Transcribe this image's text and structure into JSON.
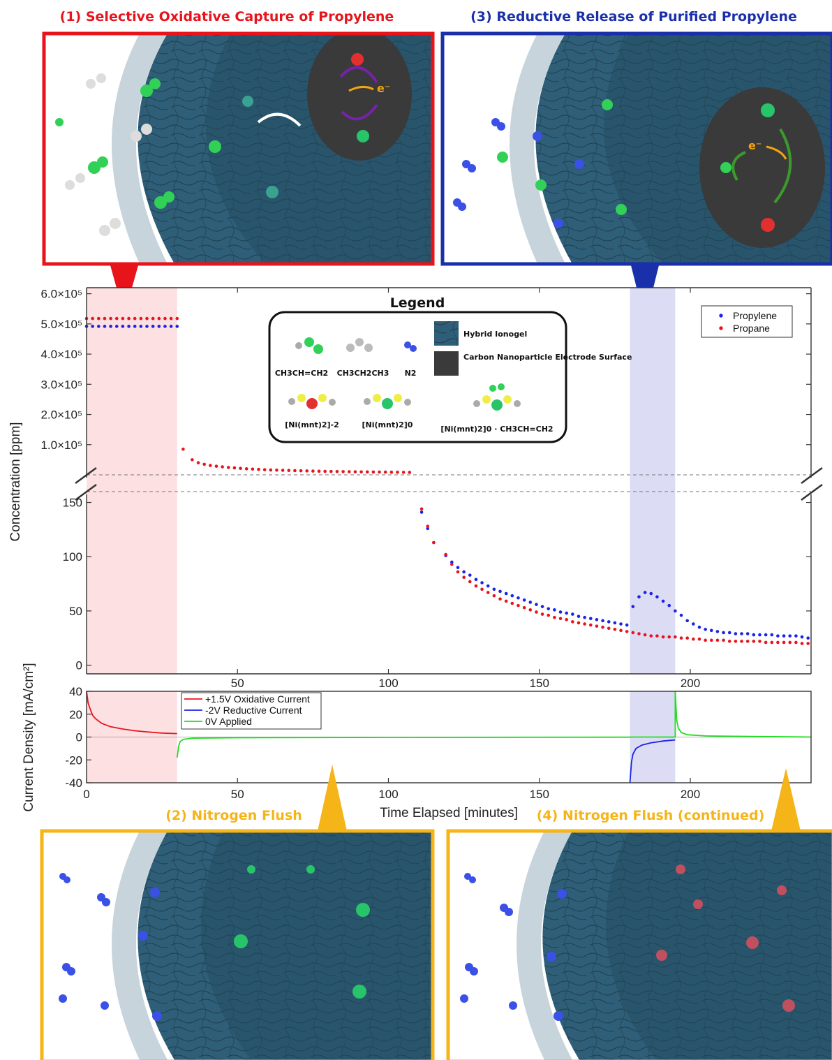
{
  "panels": {
    "p1_title": "(1) Selective Oxidative Capture of Propylene",
    "p2_title": "(2) Nitrogen Flush",
    "p3_title": "(3) Reductive Release of Purified Propylene",
    "p4_title": "(4) Nitrogen Flush (continued)",
    "electron_label": "e⁻",
    "colors": {
      "p1": "#e8141c",
      "p2": "#f5b417",
      "p3": "#1a2faa",
      "p4": "#f5b417"
    }
  },
  "legend_box": {
    "title": "Legend",
    "items": [
      {
        "label": "CH3CH=CH2",
        "icon": "propylene-molecule"
      },
      {
        "label": "CH3CH2CH3",
        "icon": "propane-molecule"
      },
      {
        "label": "N2",
        "icon": "nitrogen-molecule"
      },
      {
        "label": "Hybrid Ionogel",
        "icon": "ionogel-swatch"
      },
      {
        "label": "Carbon Nanoparticle Electrode Surface",
        "icon": "electrode-swatch"
      },
      {
        "label": "[Ni(mnt)2]-2",
        "icon": "ni-complex-reduced"
      },
      {
        "label": "[Ni(mnt)2]0",
        "icon": "ni-complex-neutral"
      },
      {
        "label": "[Ni(mnt)2]0 · CH3CH=CH2",
        "icon": "ni-complex-adduct"
      }
    ]
  },
  "chart_data": [
    {
      "type": "scatter",
      "title": "",
      "xlabel": "Time Elapsed [minutes]",
      "ylabel": "Concentration [ppm]",
      "xlim": [
        0,
        240
      ],
      "broken_y_axis": true,
      "upper_axis": {
        "ylim": [
          0,
          620000
        ],
        "ticks": [
          "1.0×10⁵",
          "2.0×10⁵",
          "3.0×10⁵",
          "4.0×10⁵",
          "5.0×10⁵",
          "6.0×10⁵"
        ],
        "tick_values": [
          100000,
          200000,
          300000,
          400000,
          500000,
          600000
        ]
      },
      "lower_axis": {
        "ylim": [
          -8,
          160
        ],
        "ticks": [
          "0",
          "50",
          "100",
          "150"
        ],
        "tick_values": [
          0,
          50,
          100,
          150
        ]
      },
      "shaded_regions": [
        {
          "x": [
            0,
            30
          ],
          "color": "#fde0e2"
        },
        {
          "x": [
            180,
            195
          ],
          "color": "#dcdcf5"
        }
      ],
      "legend": {
        "placement": "top-right",
        "entries": [
          "Propylene",
          "Propane"
        ]
      },
      "series": [
        {
          "name": "Propylene",
          "color": "#1a24e6",
          "upper_points": [
            [
              0,
              492000
            ],
            [
              2,
              492000
            ],
            [
              4,
              492000
            ],
            [
              6,
              492000
            ],
            [
              8,
              492000
            ],
            [
              10,
              492000
            ],
            [
              12,
              492000
            ],
            [
              14,
              492000
            ],
            [
              16,
              492000
            ],
            [
              18,
              492000
            ],
            [
              20,
              492000
            ],
            [
              22,
              492000
            ],
            [
              24,
              492000
            ],
            [
              26,
              492000
            ],
            [
              28,
              492000
            ],
            [
              30,
              492000
            ]
          ],
          "lower_points": [
            [
              111,
              141
            ],
            [
              113,
              126
            ],
            [
              115,
              113
            ],
            [
              119,
              101
            ],
            [
              121,
              95
            ],
            [
              123,
              90
            ],
            [
              125,
              86
            ],
            [
              127,
              83
            ],
            [
              129,
              79
            ],
            [
              131,
              76
            ],
            [
              133,
              73
            ],
            [
              135,
              70
            ],
            [
              137,
              68
            ],
            [
              139,
              66
            ],
            [
              141,
              64
            ],
            [
              143,
              62
            ],
            [
              145,
              60
            ],
            [
              147,
              58
            ],
            [
              149,
              56
            ],
            [
              151,
              54
            ],
            [
              153,
              52
            ],
            [
              155,
              51
            ],
            [
              157,
              49
            ],
            [
              159,
              48
            ],
            [
              161,
              47
            ],
            [
              163,
              45
            ],
            [
              165,
              44
            ],
            [
              167,
              43
            ],
            [
              169,
              42
            ],
            [
              171,
              41
            ],
            [
              173,
              40
            ],
            [
              175,
              39
            ],
            [
              177,
              38
            ],
            [
              179,
              37
            ],
            [
              181,
              54
            ],
            [
              183,
              63
            ],
            [
              185,
              67
            ],
            [
              187,
              66
            ],
            [
              189,
              63
            ],
            [
              191,
              59
            ],
            [
              193,
              55
            ],
            [
              195,
              50
            ],
            [
              197,
              46
            ],
            [
              199,
              41
            ],
            [
              201,
              38
            ],
            [
              203,
              35
            ],
            [
              205,
              33
            ],
            [
              207,
              32
            ],
            [
              209,
              31
            ],
            [
              211,
              30
            ],
            [
              213,
              30
            ],
            [
              215,
              29
            ],
            [
              217,
              29
            ],
            [
              219,
              29
            ],
            [
              221,
              28
            ],
            [
              223,
              28
            ],
            [
              225,
              28
            ],
            [
              227,
              28
            ],
            [
              229,
              27
            ],
            [
              231,
              27
            ],
            [
              233,
              27
            ],
            [
              235,
              27
            ],
            [
              237,
              26
            ],
            [
              239,
              25
            ]
          ]
        },
        {
          "name": "Propane",
          "color": "#e8141c",
          "upper_points": [
            [
              0,
              518000
            ],
            [
              2,
              518000
            ],
            [
              4,
              518000
            ],
            [
              6,
              518000
            ],
            [
              8,
              518000
            ],
            [
              10,
              518000
            ],
            [
              12,
              518000
            ],
            [
              14,
              518000
            ],
            [
              16,
              518000
            ],
            [
              18,
              518000
            ],
            [
              20,
              518000
            ],
            [
              22,
              518000
            ],
            [
              24,
              518000
            ],
            [
              26,
              518000
            ],
            [
              28,
              518000
            ],
            [
              30,
              518000
            ],
            [
              32,
              85000
            ],
            [
              35,
              50000
            ],
            [
              37,
              40000
            ],
            [
              39,
              35000
            ],
            [
              41,
              31000
            ],
            [
              43,
              28500
            ],
            [
              45,
              26500
            ],
            [
              47,
              24500
            ],
            [
              49,
              23000
            ],
            [
              51,
              21500
            ],
            [
              53,
              20000
            ],
            [
              55,
              19000
            ],
            [
              57,
              18000
            ],
            [
              59,
              17000
            ],
            [
              61,
              16000
            ],
            [
              63,
              15500
            ],
            [
              65,
              15000
            ],
            [
              67,
              14500
            ],
            [
              69,
              14000
            ],
            [
              71,
              13500
            ],
            [
              73,
              13000
            ],
            [
              75,
              12500
            ],
            [
              77,
              12000
            ],
            [
              79,
              11600
            ],
            [
              81,
              11200
            ],
            [
              83,
              10900
            ],
            [
              85,
              10600
            ],
            [
              87,
              10300
            ],
            [
              89,
              10000
            ],
            [
              91,
              9800
            ],
            [
              93,
              9600
            ],
            [
              95,
              9400
            ],
            [
              97,
              9200
            ],
            [
              99,
              9000
            ],
            [
              101,
              8800
            ],
            [
              103,
              8600
            ],
            [
              105,
              8400
            ],
            [
              107,
              8200
            ]
          ],
          "lower_points": [
            [
              111,
              144
            ],
            [
              113,
              128
            ],
            [
              115,
              113
            ],
            [
              119,
              102
            ],
            [
              121,
              93
            ],
            [
              123,
              86
            ],
            [
              125,
              81
            ],
            [
              127,
              77
            ],
            [
              129,
              73
            ],
            [
              131,
              70
            ],
            [
              133,
              67
            ],
            [
              135,
              64
            ],
            [
              137,
              61
            ],
            [
              139,
              59
            ],
            [
              141,
              57
            ],
            [
              143,
              55
            ],
            [
              145,
              53
            ],
            [
              147,
              51
            ],
            [
              149,
              49
            ],
            [
              151,
              47
            ],
            [
              153,
              46
            ],
            [
              155,
              44
            ],
            [
              157,
              43
            ],
            [
              159,
              42
            ],
            [
              161,
              40
            ],
            [
              163,
              39
            ],
            [
              165,
              38
            ],
            [
              167,
              37
            ],
            [
              169,
              36
            ],
            [
              171,
              35
            ],
            [
              173,
              34
            ],
            [
              175,
              33
            ],
            [
              177,
              32
            ],
            [
              179,
              31
            ],
            [
              181,
              30
            ],
            [
              183,
              29
            ],
            [
              185,
              28
            ],
            [
              187,
              27
            ],
            [
              189,
              27
            ],
            [
              191,
              26
            ],
            [
              193,
              26
            ],
            [
              195,
              26
            ],
            [
              197,
              25
            ],
            [
              199,
              25
            ],
            [
              201,
              24
            ],
            [
              203,
              24
            ],
            [
              205,
              23
            ],
            [
              207,
              23
            ],
            [
              209,
              23
            ],
            [
              211,
              23
            ],
            [
              213,
              22
            ],
            [
              215,
              22
            ],
            [
              217,
              22
            ],
            [
              219,
              22
            ],
            [
              221,
              22
            ],
            [
              223,
              22
            ],
            [
              225,
              21
            ],
            [
              227,
              21
            ],
            [
              229,
              21
            ],
            [
              231,
              21
            ],
            [
              233,
              21
            ],
            [
              235,
              21
            ],
            [
              237,
              20
            ],
            [
              239,
              20
            ]
          ]
        }
      ]
    },
    {
      "type": "line",
      "title": "",
      "xlabel": "Time Elapsed [minutes]",
      "ylabel": "Current Density [mA/cm²]",
      "xlim": [
        0,
        240
      ],
      "ylim": [
        -40,
        40
      ],
      "x_ticks": [
        0,
        50,
        100,
        150,
        200
      ],
      "y_ticks": [
        40,
        20,
        0,
        -20,
        -40
      ],
      "legend": {
        "placement": "top-left",
        "entries": [
          "+1.5V Oxidative Current",
          "-2V Reductive Current",
          "0V Applied"
        ]
      },
      "series": [
        {
          "name": "+1.5V Oxidative Current",
          "color": "#e8141c",
          "points": [
            [
              0,
              40
            ],
            [
              0.5,
              30
            ],
            [
              1,
              26
            ],
            [
              2,
              19
            ],
            [
              3,
              16
            ],
            [
              5,
              12
            ],
            [
              8,
              9
            ],
            [
              12,
              7
            ],
            [
              16,
              5.5
            ],
            [
              20,
              4.5
            ],
            [
              25,
              3.5
            ],
            [
              30,
              3
            ]
          ]
        },
        {
          "name": "-2V Reductive Current",
          "color": "#1a24e6",
          "points": [
            [
              180,
              -40
            ],
            [
              180.5,
              -22
            ],
            [
              181,
              -15
            ],
            [
              182,
              -10
            ],
            [
              184,
              -7
            ],
            [
              187,
              -5
            ],
            [
              191,
              -3.5
            ],
            [
              195,
              -2.5
            ]
          ]
        },
        {
          "name": "0V Applied",
          "color": "#22dd22",
          "points": [
            [
              30,
              -18
            ],
            [
              30.5,
              -8
            ],
            [
              31,
              -4
            ],
            [
              32,
              -2
            ],
            [
              35,
              -1
            ],
            [
              50,
              -0.6
            ],
            [
              100,
              -0.3
            ],
            [
              150,
              -0.2
            ],
            [
              180,
              -0.1
            ],
            [
              180.5,
              0
            ],
            [
              195,
              0
            ],
            [
              195,
              40
            ],
            [
              195.5,
              15
            ],
            [
              196,
              8
            ],
            [
              197,
              4
            ],
            [
              199,
              2
            ],
            [
              205,
              1
            ],
            [
              220,
              0.5
            ],
            [
              240,
              0
            ]
          ]
        }
      ]
    }
  ]
}
